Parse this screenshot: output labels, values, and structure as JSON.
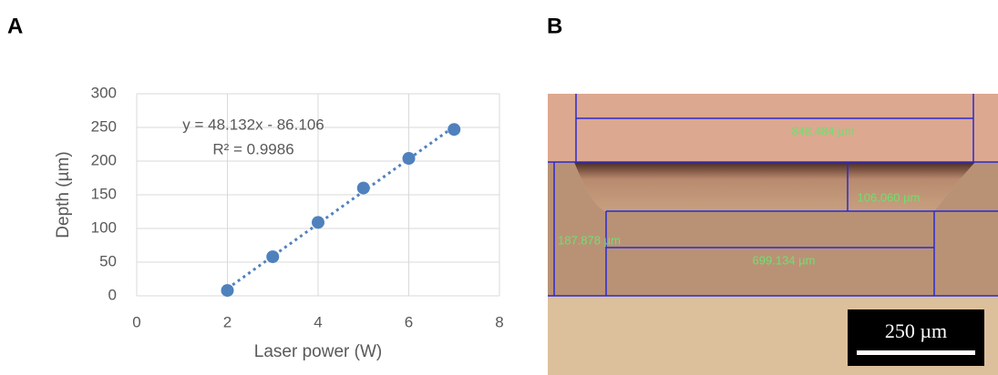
{
  "panels": {
    "a": "A",
    "b": "B"
  },
  "chart_data": {
    "type": "scatter",
    "x_label": "Laser power (W)",
    "y_label": "Depth (µm)",
    "annotations": [
      "y = 48.132x - 86.106",
      "R² = 0.9986"
    ],
    "x": [
      2,
      3,
      4,
      5,
      6,
      7
    ],
    "values": [
      8,
      58,
      109,
      160,
      204,
      247
    ],
    "color": "#4f81bd",
    "xlim": [
      0,
      8
    ],
    "xticks": [
      0,
      2,
      4,
      6,
      8
    ],
    "ylim": [
      0,
      300
    ],
    "yticks": [
      0,
      50,
      100,
      150,
      200,
      250,
      300
    ],
    "grid": true,
    "trendline": true
  },
  "micrograph": {
    "labels": [
      "848.484 µm",
      "106.060 µm",
      "187.878 µm",
      "699.134 µm"
    ],
    "scale_bar": "250 µm"
  }
}
